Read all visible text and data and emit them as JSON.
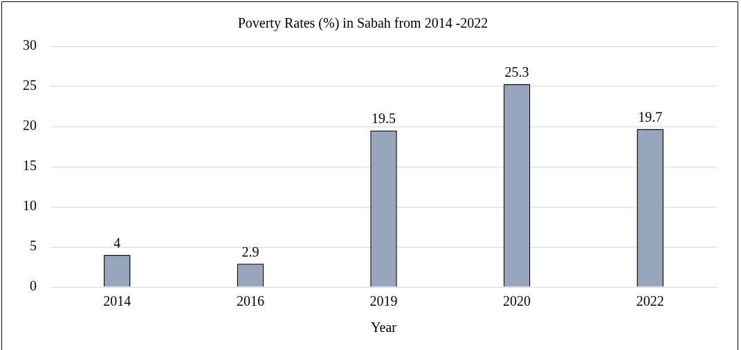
{
  "chart_data": {
    "type": "bar",
    "title": "Poverty Rates (%) in Sabah from 2014 -2022",
    "xlabel": "Year",
    "categories": [
      "2014",
      "2016",
      "2019",
      "2020",
      "2022"
    ],
    "values": [
      4,
      2.9,
      19.5,
      25.3,
      19.7
    ],
    "color": "#97a6bd",
    "ylim": [
      0,
      30
    ],
    "yticks": [
      0,
      5,
      10,
      15,
      20,
      25,
      30
    ],
    "grid": "y",
    "data_labels": true,
    "legend": false
  }
}
